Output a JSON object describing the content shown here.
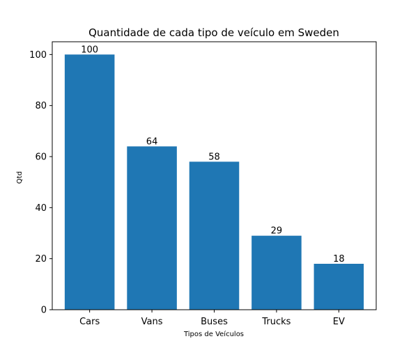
{
  "chart_data": {
    "type": "bar",
    "title": "Quantidade de cada tipo de veículo em Sweden",
    "xlabel": "Tipos de Veículos",
    "ylabel": "Qtd",
    "categories": [
      "Cars",
      "Vans",
      "Buses",
      "Trucks",
      "EV"
    ],
    "values": [
      100,
      64,
      58,
      29,
      18
    ],
    "ylim": [
      0,
      105
    ],
    "yticks": [
      0,
      20,
      40,
      60,
      80,
      100
    ],
    "bar_color": "#1f77b4",
    "grid": false,
    "legend": "none"
  }
}
